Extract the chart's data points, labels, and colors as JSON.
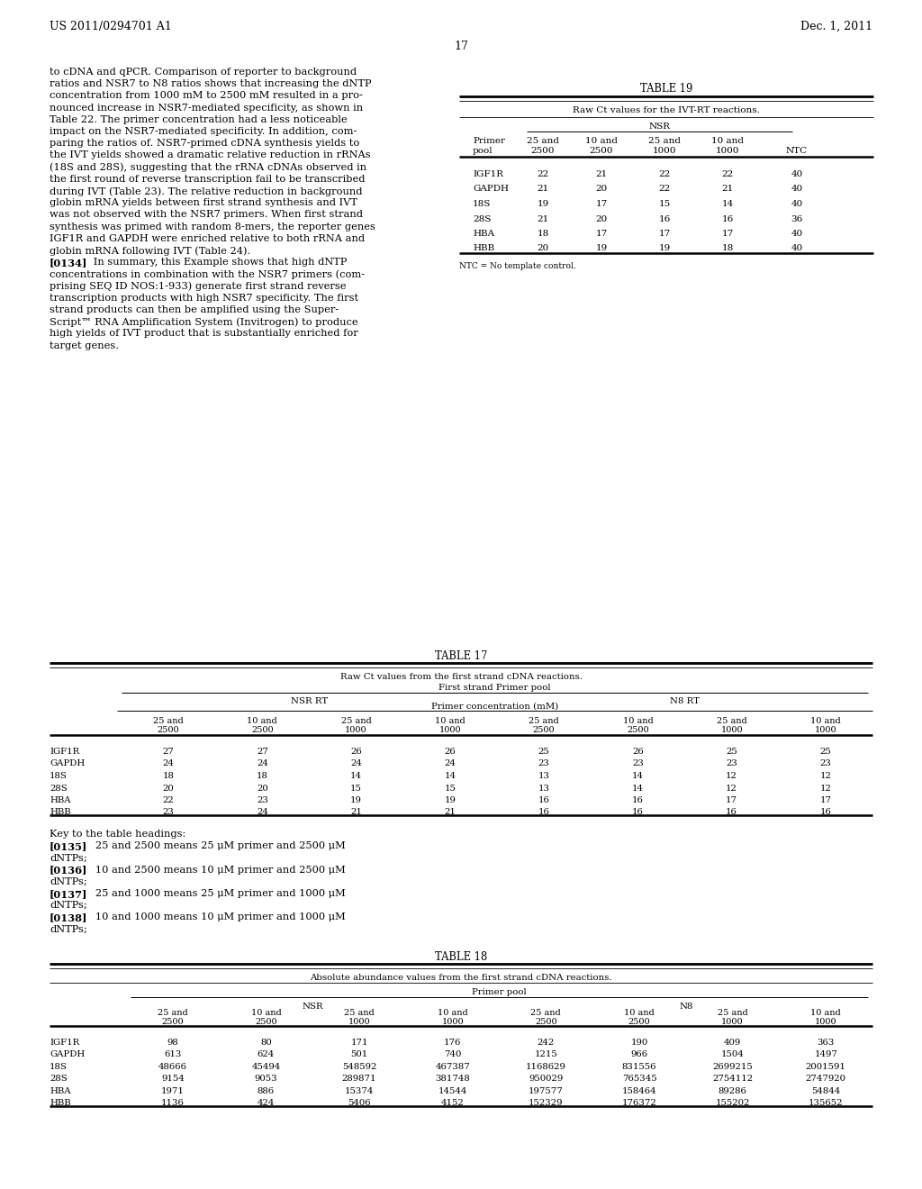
{
  "header_left": "US 2011/0294701 A1",
  "header_right": "Dec. 1, 2011",
  "page_number": "17",
  "background_color": "#ffffff",
  "body_text_left": [
    "to cDNA and qPCR. Comparison of reporter to background",
    "ratios and NSR7 to N8 ratios shows that increasing the dNTP",
    "concentration from 1000 mM to 2500 mM resulted in a pro-",
    "nounced increase in NSR7-mediated specificity, as shown in",
    "Table 22. The primer concentration had a less noticeable",
    "impact on the NSR7-mediated specificity. In addition, com-",
    "paring the ratios of. NSR7-primed cDNA synthesis yields to",
    "the IVT yields showed a dramatic relative reduction in rRNAs",
    "(18S and 28S), suggesting that the rRNA cDNAs observed in",
    "the first round of reverse transcription fail to be transcribed",
    "during IVT (Table 23). The relative reduction in background",
    "globin mRNA yields between first strand synthesis and IVT",
    "was not observed with the NSR7 primers. When first strand",
    "synthesis was primed with random 8-mers, the reporter genes",
    "IGF1R and GAPDH were enriched relative to both rRNA and",
    "globin mRNA following IVT (Table 24)."
  ],
  "para0134": "[0134]",
  "para0134_text": [
    "   In summary, this Example shows that high dNTP",
    "concentrations in combination with the NSR7 primers (com-",
    "prising SEQ ID NOS:1-933) generate first strand reverse",
    "transcription products with high NSR7 specificity. The first",
    "strand products can then be amplified using the Super-",
    "Script™ RNA Amplification System (Invitrogen) to produce",
    "high yields of IVT product that is substantially enriched for",
    "target genes."
  ],
  "table19_title": "TABLE 19",
  "table19_subtitle": "Raw Ct values for the IVT-RT reactions.",
  "table19_nsr_label": "NSR",
  "table19_col1_h1": "Primer",
  "table19_col1_h2": "pool",
  "table19_headers1": [
    "25 and",
    "10 and",
    "25 and",
    "10 and",
    ""
  ],
  "table19_headers2": [
    "2500",
    "2500",
    "1000",
    "1000",
    "NTC"
  ],
  "table19_data": [
    [
      "IGF1R",
      "22",
      "21",
      "22",
      "22",
      "40"
    ],
    [
      "GAPDH",
      "21",
      "20",
      "22",
      "21",
      "40"
    ],
    [
      "18S",
      "19",
      "17",
      "15",
      "14",
      "40"
    ],
    [
      "28S",
      "21",
      "20",
      "16",
      "16",
      "36"
    ],
    [
      "HBA",
      "18",
      "17",
      "17",
      "17",
      "40"
    ],
    [
      "HBB",
      "20",
      "19",
      "19",
      "18",
      "40"
    ]
  ],
  "table19_footnote": "NTC = No template control.",
  "table17_title": "TABLE 17",
  "table17_subtitle": "Raw Ct values from the first strand cDNA reactions.",
  "table17_group": "First strand Primer pool",
  "table17_sub1": "NSR RT",
  "table17_sub2": "N8 RT",
  "table17_conc": "Primer concentration (mM)",
  "table17_h1": [
    "25 and",
    "10 and",
    "25 and",
    "10 and",
    "25 and",
    "10 and",
    "25 and",
    "10 and"
  ],
  "table17_h2": [
    "2500",
    "2500",
    "1000",
    "1000",
    "2500",
    "2500",
    "1000",
    "1000"
  ],
  "table17_data": [
    [
      "IGF1R",
      "27",
      "27",
      "26",
      "26",
      "25",
      "26",
      "25",
      "25"
    ],
    [
      "GAPDH",
      "24",
      "24",
      "24",
      "24",
      "23",
      "23",
      "23",
      "23"
    ],
    [
      "18S",
      "18",
      "18",
      "14",
      "14",
      "13",
      "14",
      "12",
      "12"
    ],
    [
      "28S",
      "20",
      "20",
      "15",
      "15",
      "13",
      "14",
      "12",
      "12"
    ],
    [
      "HBA",
      "22",
      "23",
      "19",
      "19",
      "16",
      "16",
      "17",
      "17"
    ],
    [
      "HBB",
      "23",
      "24",
      "21",
      "21",
      "16",
      "16",
      "16",
      "16"
    ]
  ],
  "key_heading": "Key to the table headings:",
  "key_entries": [
    {
      "tag": "[0135]",
      "text": "   25 and 2500 means 25 μM primer and 2500 μM"
    },
    {
      "tag": "",
      "text": "dNTPs;"
    },
    {
      "tag": "[0136]",
      "text": "   10 and 2500 means 10 μM primer and 2500 μM"
    },
    {
      "tag": "",
      "text": "dNTPs;"
    },
    {
      "tag": "[0137]",
      "text": "   25 and 1000 means 25 μM primer and 1000 μM"
    },
    {
      "tag": "",
      "text": "dNTPs;"
    },
    {
      "tag": "[0138]",
      "text": "   10 and 1000 means 10 μM primer and 1000 μM"
    },
    {
      "tag": "",
      "text": "dNTPs;"
    }
  ],
  "table18_title": "TABLE 18",
  "table18_subtitle": "Absolute abundance values from the first strand cDNA reactions.",
  "table18_group": "Primer pool",
  "table18_sub1": "NSR",
  "table18_sub2": "N8",
  "table18_h1": [
    "25 and",
    "10 and",
    "25 and",
    "10 and",
    "25 and",
    "10 and",
    "25 and",
    "10 and"
  ],
  "table18_h2": [
    "2500",
    "2500",
    "1000",
    "1000",
    "2500",
    "2500",
    "1000",
    "1000"
  ],
  "table18_data": [
    [
      "IGF1R",
      "98",
      "80",
      "171",
      "176",
      "242",
      "190",
      "409",
      "363"
    ],
    [
      "GAPDH",
      "613",
      "624",
      "501",
      "740",
      "1215",
      "966",
      "1504",
      "1497"
    ],
    [
      "18S",
      "48666",
      "45494",
      "548592",
      "467387",
      "1168629",
      "831556",
      "2699215",
      "2001591"
    ],
    [
      "28S",
      "9154",
      "9053",
      "289871",
      "381748",
      "950029",
      "765345",
      "2754112",
      "2747920"
    ],
    [
      "HBA",
      "1971",
      "886",
      "15374",
      "14544",
      "197577",
      "158464",
      "89286",
      "54844"
    ],
    [
      "HBB",
      "1136",
      "424",
      "5406",
      "4152",
      "152329",
      "176372",
      "155202",
      "135652"
    ]
  ]
}
